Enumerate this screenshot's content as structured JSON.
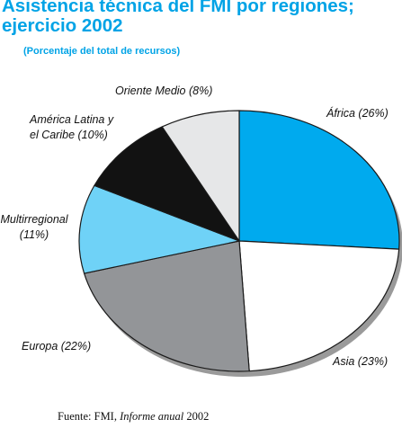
{
  "title_line1": "Asistencia técnica del FMI por regiones;",
  "title_line2": "ejercicio 2002",
  "subtitle": "(Porcentaje del total de recursos)",
  "chart_data": {
    "type": "pie",
    "unit": "%",
    "slices": [
      {
        "label_line1": "África (26%)",
        "label_line2": "",
        "value": 26,
        "color": "#00aaee"
      },
      {
        "label_line1": "Asia (23%)",
        "label_line2": "",
        "value": 23,
        "color": "#ffffff"
      },
      {
        "label_line1": "Europa (22%)",
        "label_line2": "",
        "value": 22,
        "color": "#939598"
      },
      {
        "label_line1": "Multirregional",
        "label_line2": "(11%)",
        "value": 11,
        "color": "#6fd2f7"
      },
      {
        "label_line1": "América Latina y",
        "label_line2": "el Caribe (10%)",
        "value": 10,
        "color": "#121212"
      },
      {
        "label_line1": "Oriente Medio (8%)",
        "label_line2": "",
        "value": 8,
        "color": "#e6e7e8"
      }
    ]
  },
  "source": {
    "prefix": "Fuente:  FMI, ",
    "italic": "Informe anual",
    "suffix": " 2002"
  }
}
